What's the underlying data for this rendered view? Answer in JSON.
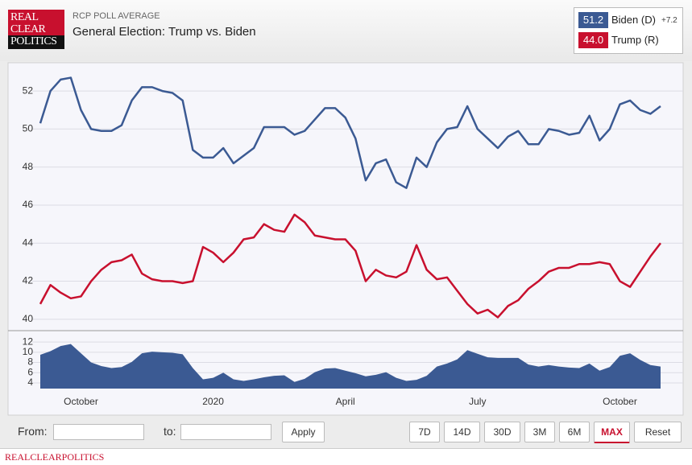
{
  "header": {
    "logo": [
      "REAL",
      "CLEAR",
      "POLITICS"
    ],
    "label": "RCP POLL AVERAGE",
    "title": "General Election: Trump vs. Biden"
  },
  "legend": [
    {
      "latest": "51.2",
      "spread": "+7.2"
    },
    {
      "latest": "44.0"
    }
  ],
  "chart_data": [
    {
      "type": "line",
      "categories": [
        null,
        null,
        null,
        null,
        "October",
        null,
        null,
        null,
        null,
        null,
        null,
        null,
        null,
        null,
        null,
        null,
        null,
        "2020",
        null,
        null,
        null,
        null,
        null,
        null,
        null,
        null,
        null,
        null,
        null,
        null,
        "April",
        null,
        null,
        null,
        null,
        null,
        null,
        null,
        null,
        null,
        null,
        null,
        null,
        "July",
        null,
        null,
        null,
        null,
        null,
        null,
        null,
        null,
        null,
        null,
        null,
        null,
        null,
        "October",
        null,
        null,
        null,
        null
      ],
      "series": [
        {
          "name": "Biden (D)",
          "color": "#3b5a93",
          "values": [
            50.3,
            52.0,
            52.6,
            52.7,
            51.0,
            50.0,
            49.9,
            49.9,
            50.2,
            51.5,
            52.2,
            52.2,
            52.0,
            51.9,
            51.5,
            48.9,
            48.5,
            48.5,
            49.0,
            48.2,
            48.6,
            49.0,
            50.1,
            50.1,
            50.1,
            49.7,
            49.9,
            50.5,
            51.1,
            51.1,
            50.6,
            49.5,
            47.3,
            48.2,
            48.4,
            47.2,
            46.9,
            48.5,
            48.0,
            49.3,
            50.0,
            50.1,
            51.2,
            50.0,
            49.5,
            49.0,
            49.6,
            49.9,
            49.2,
            49.2,
            50.0,
            49.9,
            49.7,
            49.8,
            50.7,
            49.4,
            50.0,
            51.3,
            51.5,
            51.0,
            50.8,
            51.2
          ]
        },
        {
          "name": "Trump (R)",
          "color": "#c8102e",
          "values": [
            40.8,
            41.8,
            41.4,
            41.1,
            41.2,
            42.0,
            42.6,
            43.0,
            43.1,
            43.4,
            42.4,
            42.1,
            42.0,
            42.0,
            41.9,
            42.0,
            43.8,
            43.5,
            43.0,
            43.5,
            44.2,
            44.3,
            45.0,
            44.7,
            44.6,
            45.5,
            45.1,
            44.4,
            44.3,
            44.2,
            44.2,
            43.6,
            42.0,
            42.6,
            42.3,
            42.2,
            42.5,
            43.9,
            42.6,
            42.1,
            42.2,
            41.5,
            40.8,
            40.3,
            40.5,
            40.1,
            40.7,
            41.0,
            41.6,
            42.0,
            42.5,
            42.7,
            42.7,
            42.9,
            42.9,
            43.0,
            42.9,
            42.0,
            41.7,
            42.5,
            43.3,
            44.0
          ]
        }
      ],
      "ylim": [
        39.4,
        53.4
      ],
      "yticks": [
        40,
        42,
        44,
        46,
        48,
        50,
        52
      ],
      "grid": true
    },
    {
      "type": "area",
      "color": "#3b5a93",
      "values": [
        9.5,
        10.2,
        11.2,
        11.6,
        9.8,
        8.0,
        7.3,
        6.9,
        7.1,
        8.1,
        9.8,
        10.1,
        10.0,
        9.9,
        9.6,
        6.9,
        4.7,
        5.0,
        6.0,
        4.7,
        4.4,
        4.7,
        5.1,
        5.4,
        5.5,
        4.2,
        4.8,
        6.1,
        6.8,
        6.9,
        6.4,
        5.9,
        5.3,
        5.6,
        6.1,
        5.0,
        4.4,
        4.6,
        5.4,
        7.2,
        7.8,
        8.6,
        10.4,
        9.7,
        9.0,
        8.9,
        8.9,
        8.9,
        7.6,
        7.2,
        7.5,
        7.2,
        7.0,
        6.9,
        7.8,
        6.4,
        7.1,
        9.3,
        9.8,
        8.5,
        7.5,
        7.2
      ],
      "ylim": [
        2.9,
        13.9
      ],
      "yticks": [
        4,
        6,
        8,
        10,
        12
      ],
      "grid": true
    }
  ],
  "controls": {
    "from": "From:",
    "to": "to:",
    "apply": "Apply",
    "ranges": [
      "7D",
      "14D",
      "30D",
      "3M",
      "6M",
      "MAX",
      "Reset"
    ],
    "active": 5
  },
  "footer": "REALCLEARPOLITICS"
}
